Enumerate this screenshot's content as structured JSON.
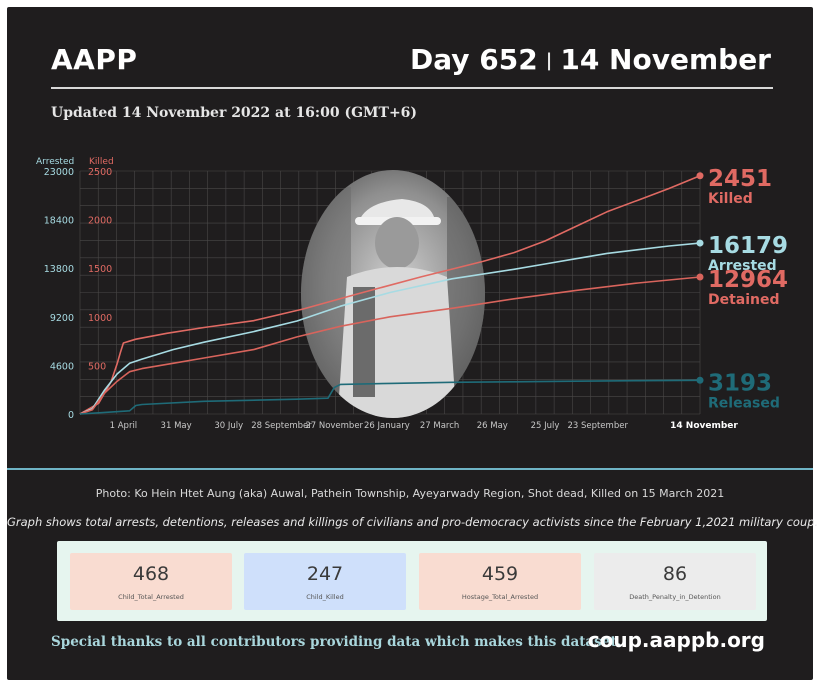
{
  "header": {
    "brand": "AAPP",
    "day_label": "Day 652",
    "separator": "|",
    "date": "14 November",
    "updated": "Updated 14 November 2022 at 16:00 (GMT+6)"
  },
  "colors": {
    "killed": "#e06a63",
    "arrested": "#a7dbe3",
    "detained": "#d8645c",
    "released": "#1f6b78"
  },
  "chart_data": {
    "type": "line",
    "xaxis_ticks": [
      "1 April",
      "31 May",
      "30 July",
      "28 September",
      "27 November",
      "26 January",
      "27 March",
      "26 May",
      "25 July",
      "23 September",
      "14 November"
    ],
    "left_axis": {
      "label": "Arrested",
      "ticks": [
        0,
        4600,
        9200,
        13800,
        18400,
        23000
      ],
      "ylim": [
        0,
        23000
      ]
    },
    "right_axis": {
      "label": "Killed",
      "ticks": [
        0,
        500,
        1000,
        1500,
        2000,
        2500
      ],
      "ylim": [
        0,
        2500
      ]
    },
    "series": [
      {
        "name": "Killed",
        "axis": "killed",
        "final_value": "2451",
        "final_label": "Killed",
        "x": [
          0,
          0.03,
          0.05,
          0.06,
          0.065,
          0.07,
          0.09,
          0.14,
          0.2,
          0.28,
          0.36,
          0.45,
          0.55,
          0.65,
          0.7,
          0.75,
          0.8,
          0.85,
          0.9,
          0.95,
          1.0
        ],
        "values": [
          0,
          110,
          330,
          520,
          630,
          730,
          770,
          830,
          890,
          960,
          1080,
          1240,
          1410,
          1570,
          1660,
          1780,
          1930,
          2080,
          2200,
          2320,
          2451
        ]
      },
      {
        "name": "Arrested",
        "axis": "arrested",
        "final_value": "16179",
        "final_label": "Arrested",
        "x": [
          0,
          0.02,
          0.04,
          0.06,
          0.08,
          0.1,
          0.15,
          0.2,
          0.28,
          0.35,
          0.42,
          0.5,
          0.6,
          0.7,
          0.75,
          0.8,
          0.85,
          0.9,
          0.95,
          1.0
        ],
        "values": [
          0,
          500,
          2300,
          3800,
          4800,
          5200,
          6100,
          6800,
          7800,
          8800,
          10200,
          11500,
          12800,
          13700,
          14200,
          14700,
          15200,
          15550,
          15900,
          16179
        ]
      },
      {
        "name": "Detained",
        "axis": "arrested",
        "final_value": "12964",
        "final_label": "Detained",
        "x": [
          0,
          0.02,
          0.04,
          0.06,
          0.08,
          0.1,
          0.15,
          0.2,
          0.28,
          0.35,
          0.42,
          0.5,
          0.6,
          0.7,
          0.8,
          0.9,
          1.0
        ],
        "values": [
          0,
          400,
          2000,
          3100,
          4000,
          4300,
          4800,
          5300,
          6100,
          7300,
          8300,
          9200,
          10000,
          10900,
          11700,
          12400,
          12964
        ]
      },
      {
        "name": "Released",
        "axis": "arrested",
        "final_value": "3193",
        "final_label": "Released",
        "x": [
          0,
          0.04,
          0.08,
          0.09,
          0.1,
          0.2,
          0.35,
          0.4,
          0.41,
          0.42,
          0.5,
          0.6,
          0.7,
          0.8,
          0.9,
          1.0
        ],
        "values": [
          0,
          150,
          300,
          800,
          900,
          1200,
          1400,
          1500,
          2500,
          2800,
          2900,
          3000,
          3050,
          3100,
          3150,
          3193
        ]
      }
    ]
  },
  "photo_caption": "Photo: Ko Hein Htet Aung (aka) Auwal, Pathein Township, Ayeyarwady Region, Shot dead, Killed on 15 March 2021",
  "graph_note": "Graph shows total arrests, detentions, releases and killings of civilians and pro-democracy activists since the February 1,2021 military coup.",
  "stats": [
    {
      "value": "468",
      "label": "Child_Total_Arrested",
      "color": "#f9dcd1"
    },
    {
      "value": "247",
      "label": "Child_Killed",
      "color": "#cfe0fb"
    },
    {
      "value": "459",
      "label": "Hostage_Total_Arrested",
      "color": "#f9dcd1"
    },
    {
      "value": "86",
      "label": "Death_Penalty_in_Detention",
      "color": "#ececec"
    }
  ],
  "footer": {
    "thanks": "Special thanks to all contributors providing data which makes this dataset.",
    "site": "coup.aappb.org"
  }
}
